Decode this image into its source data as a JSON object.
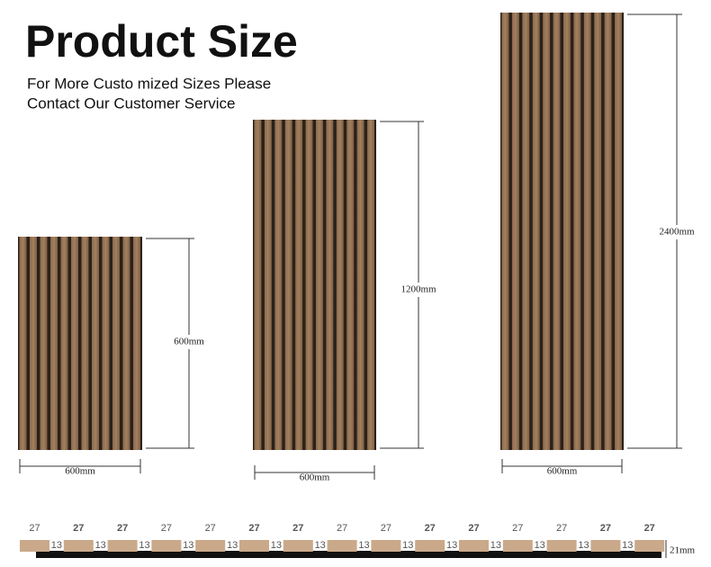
{
  "header": {
    "title": "Product Size",
    "subtitle": [
      "For More Custo mized Sizes Please",
      "Contact Our Customer Service"
    ]
  },
  "panels": [
    {
      "height": "600mm",
      "width": "600mm"
    },
    {
      "height": "1200mm",
      "width": "600mm"
    },
    {
      "height": "2400mm",
      "width": "600mm"
    }
  ],
  "profile": {
    "slat_widths": [
      "27",
      "27",
      "27",
      "27",
      "27",
      "27",
      "27",
      "27",
      "27",
      "27",
      "27",
      "27",
      "27",
      "27",
      "27"
    ],
    "gap_widths": [
      "13",
      "13",
      "13",
      "13",
      "13",
      "13",
      "13",
      "13",
      "13",
      "13",
      "13",
      "13",
      "13",
      "13"
    ],
    "thickness": "21mm"
  }
}
